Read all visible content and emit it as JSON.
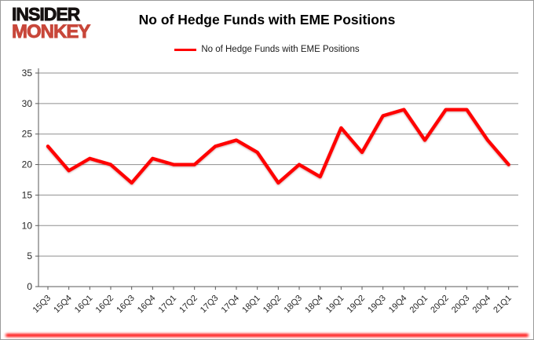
{
  "logo": {
    "line1": "INSIDER",
    "line2": "MONKEY",
    "color_top": "#151110",
    "color_bottom": "#c8473a"
  },
  "header": {
    "title": "No of Hedge Funds with EME Positions"
  },
  "legend": {
    "label": "No of Hedge Funds with EME Positions",
    "color": "#ff0000"
  },
  "colors": {
    "series": "#ff0000",
    "gridline": "#8f8f8f",
    "axis": "#5a5a5a",
    "tick_label": "#262626",
    "bottom_glow": "#ff0000"
  },
  "chart_data": {
    "type": "line",
    "title": "No of Hedge Funds with EME Positions",
    "categories": [
      "15Q3",
      "15Q4",
      "16Q1",
      "16Q2",
      "16Q3",
      "16Q4",
      "17Q1",
      "17Q2",
      "17Q3",
      "17Q4",
      "18Q1",
      "18Q2",
      "18Q3",
      "18Q4",
      "19Q1",
      "19Q2",
      "19Q3",
      "19Q4",
      "20Q1",
      "20Q2",
      "20Q3",
      "20Q4",
      "21Q1"
    ],
    "series": [
      {
        "name": "No of Hedge Funds with EME Positions",
        "color": "#ff0000",
        "values": [
          23,
          19,
          21,
          20,
          17,
          21,
          20,
          20,
          23,
          24,
          22,
          17,
          20,
          18,
          26,
          22,
          28,
          29,
          24,
          29,
          29,
          24,
          20
        ]
      }
    ],
    "xlabel": "",
    "ylabel": "",
    "ylim": [
      0,
      35
    ],
    "yticks": [
      0,
      5,
      10,
      15,
      20,
      25,
      30,
      35
    ],
    "grid": "horizontal",
    "legend_position": "top",
    "x_label_rotation": -45
  }
}
